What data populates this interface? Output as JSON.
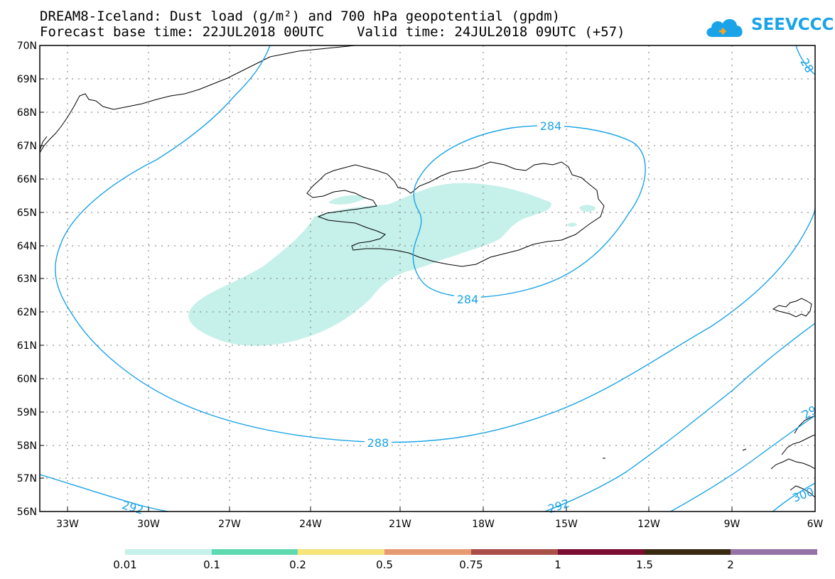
{
  "header": {
    "title": "DREAM8-Iceland: Dust load (g/m²) and 700 hPa geopotential (gpdm)",
    "subtitle": "Forecast base time: 22JUL2018 00UTC    Valid time: 24JUL2018 09UTC (+57)"
  },
  "logo": {
    "text": "SEEVCCC",
    "icon": "cloud-icon",
    "color": "#1aa3e8"
  },
  "map": {
    "lat_labels": [
      "70N",
      "69N",
      "68N",
      "67N",
      "66N",
      "65N",
      "64N",
      "63N",
      "62N",
      "61N",
      "60N",
      "59N",
      "58N",
      "57N",
      "56N"
    ],
    "lon_labels": [
      "33W",
      "30W",
      "27W",
      "24W",
      "21W",
      "18W",
      "15W",
      "12W",
      "9W",
      "6W"
    ],
    "contour_labels": {
      "c284_top": "284",
      "c284_bottom": "284",
      "c288": "288",
      "c292_left": "292",
      "c292_right": "292",
      "c28_edge": "28",
      "c29_edge": "29",
      "c300_edge": "300"
    },
    "contour_color": "#1aa3e8",
    "dust_color": "#c6f0ea"
  },
  "colorbar": {
    "labels": [
      "0.01",
      "0.1",
      "0.2",
      "0.5",
      "0.75",
      "1",
      "1.5",
      "2"
    ],
    "colors": [
      "#c6f0ea",
      "#5fd9b0",
      "#f5e47a",
      "#e79a72",
      "#a94f47",
      "#7d0c33",
      "#3b2a12",
      "#9573a6"
    ]
  }
}
